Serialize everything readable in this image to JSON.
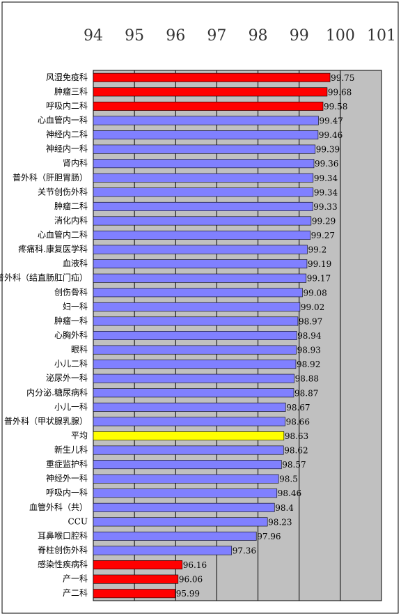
{
  "chart_data": {
    "type": "barh",
    "categories": [
      "风湿免疫科",
      "肿瘤三科",
      "呼吸内二科",
      "心血管内一科",
      "神经内二科",
      "神经内一科",
      "肾内科",
      "普外科（肝胆胃肠）",
      "关节创伤外科",
      "肿瘤二科",
      "消化内科",
      "心血管内二科",
      "疼痛科.康复医学科",
      "血液科",
      "普外科（结直肠肛门疝）",
      "创伤骨科",
      "妇一科",
      "肿瘤一科",
      "心胸外科",
      "眼科",
      "小儿二科",
      "泌尿外一科",
      "内分泌.糖尿病科",
      "小儿一科",
      "普外科（甲状腺乳腺）",
      "平均",
      "新生儿科",
      "重症监护科",
      "神经外一科",
      "呼吸内一科",
      "血管外科（共）",
      "CCU",
      "耳鼻喉口腔科",
      "脊柱创伤外科",
      "感染性疾病科",
      "产一科",
      "产二科"
    ],
    "values": [
      99.75,
      99.68,
      99.58,
      99.47,
      99.46,
      99.39,
      99.36,
      99.34,
      99.34,
      99.33,
      99.29,
      99.27,
      99.2,
      99.19,
      99.17,
      99.08,
      99.02,
      98.97,
      98.94,
      98.93,
      98.92,
      98.88,
      98.87,
      98.67,
      98.66,
      98.63,
      98.62,
      98.57,
      98.5,
      98.46,
      98.4,
      98.23,
      97.96,
      97.36,
      96.16,
      96.06,
      95.99
    ],
    "colors": [
      "#ff0000",
      "#ff0000",
      "#ff0000",
      "#8080ff",
      "#8080ff",
      "#8080ff",
      "#8080ff",
      "#8080ff",
      "#8080ff",
      "#8080ff",
      "#8080ff",
      "#8080ff",
      "#8080ff",
      "#8080ff",
      "#8080ff",
      "#8080ff",
      "#8080ff",
      "#8080ff",
      "#8080ff",
      "#8080ff",
      "#8080ff",
      "#8080ff",
      "#8080ff",
      "#8080ff",
      "#8080ff",
      "#ffff00",
      "#8080ff",
      "#8080ff",
      "#8080ff",
      "#8080ff",
      "#8080ff",
      "#8080ff",
      "#8080ff",
      "#8080ff",
      "#ff0000",
      "#ff0000",
      "#ff0000"
    ],
    "xlim": [
      94,
      101
    ],
    "xticks": [
      94,
      95,
      96,
      97,
      98,
      99,
      100,
      101
    ],
    "grid": true
  }
}
